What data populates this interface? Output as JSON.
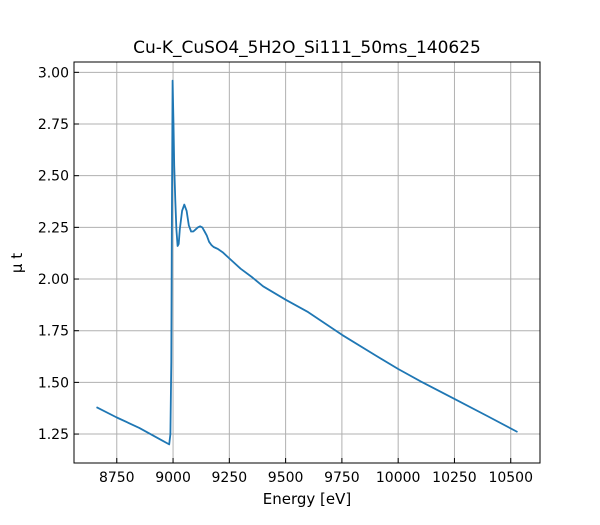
{
  "colors": {
    "series": "#1f77b4",
    "grid": "#b0b0b0",
    "axes": "#000000",
    "background": "#ffffff"
  },
  "chart_data": {
    "type": "line",
    "title": "Cu-K_CuSO4_5H2O_Si111_50ms_140625",
    "xlabel": "Energy [eV]",
    "ylabel": "μ t",
    "xlim": [
      8560,
      10630
    ],
    "ylim": [
      1.11,
      3.05
    ],
    "xticks": [
      8750,
      9000,
      9250,
      9500,
      9750,
      10000,
      10250,
      10500
    ],
    "yticks": [
      1.25,
      1.5,
      1.75,
      2.0,
      2.25,
      2.5,
      2.75,
      3.0
    ],
    "xtick_labels": [
      "8750",
      "9000",
      "9250",
      "9500",
      "9750",
      "10000",
      "10250",
      "10500"
    ],
    "ytick_labels": [
      "1.25",
      "1.50",
      "1.75",
      "2.00",
      "2.25",
      "2.50",
      "2.75",
      "3.00"
    ],
    "grid": true,
    "series": [
      {
        "x": [
          8660,
          8750,
          8850,
          8950,
          8975,
          8983,
          8988,
          8992,
          8995,
          8998,
          9002,
          9005,
          9010,
          9015,
          9020,
          9025,
          9030,
          9040,
          9050,
          9060,
          9070,
          9080,
          9090,
          9100,
          9110,
          9120,
          9130,
          9140,
          9150,
          9160,
          9170,
          9180,
          9190,
          9200,
          9220,
          9250,
          9300,
          9350,
          9400,
          9500,
          9600,
          9750,
          9900,
          10000,
          10100,
          10250,
          10400,
          10530
        ],
        "y": [
          1.38,
          1.33,
          1.28,
          1.22,
          1.205,
          1.2,
          1.25,
          1.6,
          2.3,
          2.96,
          2.75,
          2.55,
          2.38,
          2.24,
          2.16,
          2.17,
          2.24,
          2.33,
          2.36,
          2.33,
          2.26,
          2.23,
          2.23,
          2.24,
          2.25,
          2.255,
          2.25,
          2.23,
          2.21,
          2.18,
          2.165,
          2.155,
          2.15,
          2.145,
          2.13,
          2.1,
          2.05,
          2.01,
          1.965,
          1.9,
          1.84,
          1.73,
          1.63,
          1.565,
          1.505,
          1.42,
          1.335,
          1.26
        ]
      }
    ]
  }
}
